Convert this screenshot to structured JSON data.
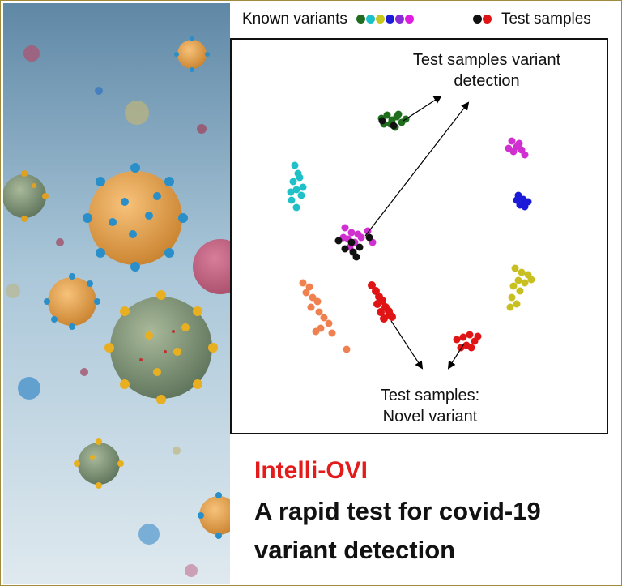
{
  "legend": {
    "known_label": "Known variants",
    "known_colors": [
      "#1f6b1f",
      "#1cc0c8",
      "#c8c81c",
      "#1c1cd8",
      "#8a2bd8",
      "#e01ce0"
    ],
    "test_label": "Test samples",
    "test_colors": [
      "#111111",
      "#e01414"
    ]
  },
  "annotations": {
    "top_line1": "Test samples variant",
    "top_line2": "detection",
    "bottom_line1": "Test samples:",
    "bottom_line2": "Novel variant"
  },
  "clusters": [
    {
      "name": "green",
      "color": "#1e6e1e"
    },
    {
      "name": "cyan",
      "color": "#20c0c8"
    },
    {
      "name": "magenta-top",
      "color": "#d030d0"
    },
    {
      "name": "blue",
      "color": "#1a1ad8"
    },
    {
      "name": "olive",
      "color": "#c8c020"
    },
    {
      "name": "magenta-center",
      "color": "#d030d0"
    },
    {
      "name": "orange",
      "color": "#f08050"
    },
    {
      "name": "red-center",
      "color": "#e01414"
    },
    {
      "name": "red-small",
      "color": "#e01414"
    },
    {
      "name": "test-black",
      "color": "#111111"
    }
  ],
  "caption": {
    "brand": "Intelli-OVI",
    "line1": "A rapid test for covid-19",
    "line2": "variant detection"
  }
}
